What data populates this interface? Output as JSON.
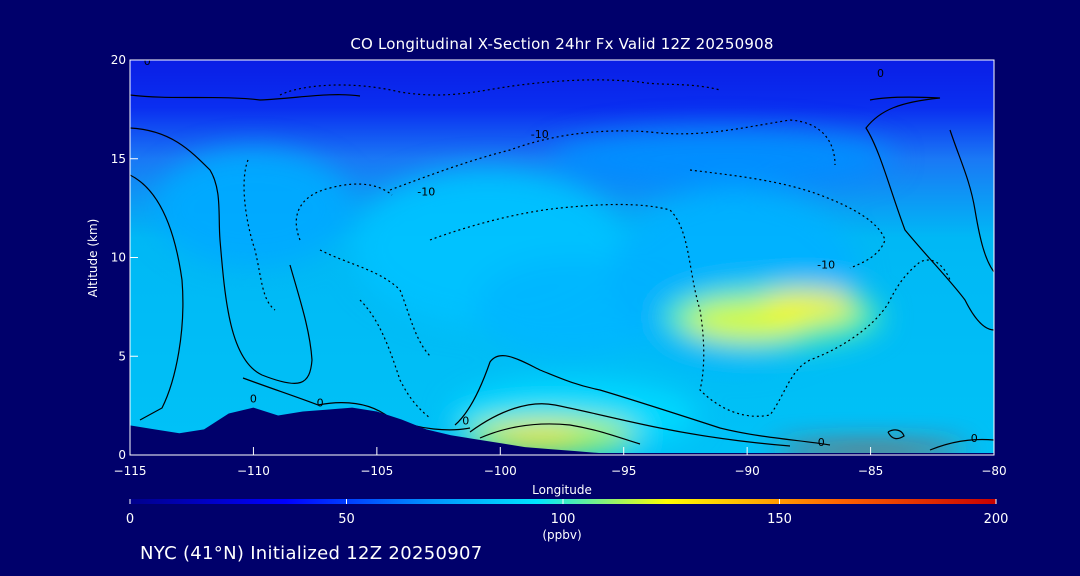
{
  "chart_data": {
    "type": "heatmap",
    "title": "CO Longitudinal X-Section 24hr  Fx Valid 12Z 20250908",
    "xlabel": "Longitude",
    "ylabel": "Altitude (km)",
    "xlim": [
      -115,
      -80
    ],
    "ylim": [
      0,
      20
    ],
    "x_ticks": [
      -115,
      -110,
      -105,
      -100,
      -95,
      -90,
      -85,
      -80
    ],
    "y_ticks": [
      0,
      5,
      10,
      15,
      20
    ],
    "colorbar": {
      "ticks": [
        0,
        50,
        100,
        150,
        200
      ],
      "unit": "(ppbv)",
      "colormap": [
        "#00008b",
        "#0000ff",
        "#0096ff",
        "#00e6ff",
        "#ffff00",
        "#ff6400",
        "#c80000"
      ]
    },
    "contour_labels": [
      {
        "text": "0",
        "lon": -114.3,
        "alt": 19.9
      },
      {
        "text": "0",
        "lon": -110.0,
        "alt": 2.8
      },
      {
        "text": "0",
        "lon": -107.3,
        "alt": 2.6
      },
      {
        "text": "0",
        "lon": -101.4,
        "alt": 1.7
      },
      {
        "text": "-10",
        "lon": -98.4,
        "alt": 16.2
      },
      {
        "text": "-10",
        "lon": -103.0,
        "alt": 13.3
      },
      {
        "text": "-10",
        "lon": -86.8,
        "alt": 9.6
      },
      {
        "text": "0",
        "lon": -84.6,
        "alt": 19.3
      },
      {
        "text": "0",
        "lon": -87.0,
        "alt": 0.6
      },
      {
        "text": "0",
        "lon": -80.8,
        "alt": 0.8
      }
    ],
    "fields": [
      {
        "lon": -110.0,
        "alt": 12.5,
        "rx": 4.0,
        "ry": 3.0,
        "value": 75
      },
      {
        "lon": -100.5,
        "alt": 10.5,
        "rx": 5.5,
        "ry": 4.0,
        "value": 85
      },
      {
        "lon": -97.0,
        "alt": 7.5,
        "rx": 4.0,
        "ry": 2.5,
        "value": 80
      },
      {
        "lon": -90.5,
        "alt": 9.0,
        "rx": 5.0,
        "ry": 4.5,
        "value": 78
      },
      {
        "lon": -89.0,
        "alt": 7.0,
        "rx": 4.5,
        "ry": 1.6,
        "value": 110
      },
      {
        "lon": -90.0,
        "alt": 6.8,
        "rx": 2.5,
        "ry": 0.9,
        "value": 130
      },
      {
        "lon": -87.5,
        "alt": 7.5,
        "rx": 2.0,
        "ry": 0.8,
        "value": 135
      },
      {
        "lon": -97.0,
        "alt": 2.0,
        "rx": 5.0,
        "ry": 1.8,
        "value": 95
      },
      {
        "lon": -98.0,
        "alt": 1.0,
        "rx": 3.5,
        "ry": 0.9,
        "value": 125
      },
      {
        "lon": -98.5,
        "alt": 0.8,
        "rx": 1.8,
        "ry": 0.5,
        "value": 140
      },
      {
        "lon": -85.0,
        "alt": 0.2,
        "rx": 4.0,
        "ry": 0.3,
        "value": 185
      },
      {
        "lon": -91.0,
        "alt": 15.0,
        "rx": 7.0,
        "ry": 1.5,
        "value": 65
      }
    ],
    "terrain": [
      [
        -115,
        1.5
      ],
      [
        -114,
        1.3
      ],
      [
        -113,
        1.1
      ],
      [
        -112,
        1.3
      ],
      [
        -111,
        2.1
      ],
      [
        -110,
        2.4
      ],
      [
        -109,
        2.0
      ],
      [
        -108,
        2.2
      ],
      [
        -107,
        2.3
      ],
      [
        -106,
        2.4
      ],
      [
        -105,
        2.2
      ],
      [
        -104,
        1.8
      ],
      [
        -103,
        1.3
      ],
      [
        -102,
        1.0
      ],
      [
        -101,
        0.8
      ],
      [
        -100,
        0.6
      ],
      [
        -99,
        0.4
      ],
      [
        -98,
        0.3
      ],
      [
        -97,
        0.2
      ],
      [
        -96,
        0.1
      ],
      [
        -80,
        0.1
      ]
    ]
  },
  "footer": "NYC (41°N) Initialized 12Z 20250907"
}
